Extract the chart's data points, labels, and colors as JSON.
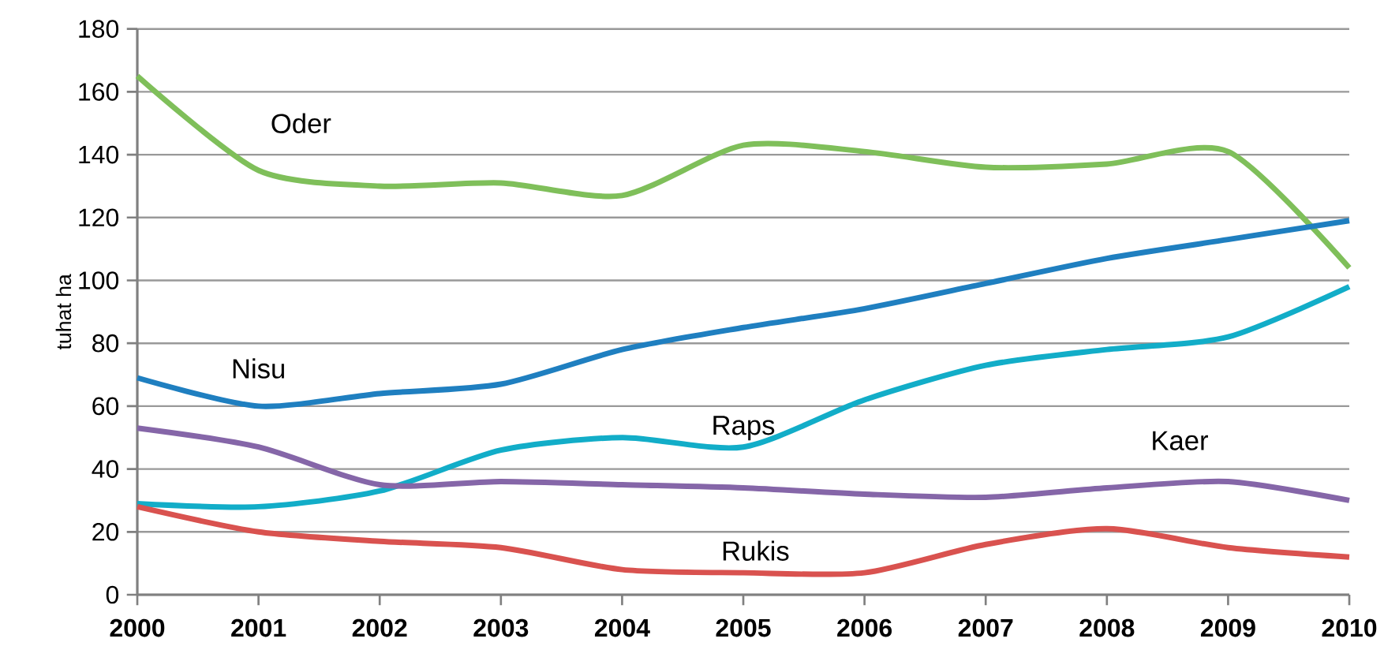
{
  "chart_data": {
    "type": "line",
    "ylabel": "tuhat ha",
    "x": [
      2000,
      2001,
      2002,
      2003,
      2004,
      2005,
      2006,
      2007,
      2008,
      2009,
      2010
    ],
    "xlim": [
      2000,
      2010
    ],
    "xticks": [
      2000,
      2001,
      2002,
      2003,
      2004,
      2005,
      2006,
      2007,
      2008,
      2009,
      2010
    ],
    "ylim": [
      0,
      180
    ],
    "yticks": [
      0,
      20,
      40,
      60,
      80,
      100,
      120,
      140,
      160,
      180
    ],
    "grid": "y",
    "legend": false,
    "marker": "none",
    "line_style": "solid",
    "series": [
      {
        "name": "Oder",
        "color": "#7fbf5a",
        "values": [
          165,
          135,
          130,
          131,
          127,
          143,
          141,
          136,
          137,
          141,
          104
        ]
      },
      {
        "name": "Nisu",
        "color": "#1f7fc0",
        "values": [
          69,
          60,
          64,
          67,
          78,
          85,
          91,
          99,
          107,
          113,
          119
        ]
      },
      {
        "name": "Raps",
        "color": "#12adc8",
        "values": [
          29,
          28,
          33,
          46,
          50,
          47,
          62,
          73,
          78,
          82,
          98
        ]
      },
      {
        "name": "Kaer",
        "color": "#8566a8",
        "values": [
          53,
          47,
          35,
          36,
          35,
          34,
          32,
          31,
          34,
          36,
          30
        ]
      },
      {
        "name": "Rukis",
        "color": "#d9524f",
        "values": [
          28,
          20,
          17,
          15,
          8,
          7,
          7,
          16,
          21,
          15,
          12
        ]
      }
    ]
  }
}
